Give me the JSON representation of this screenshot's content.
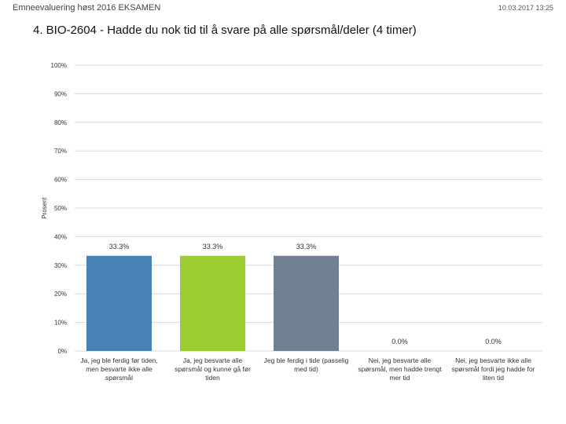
{
  "header": {
    "left_text": "Emneevaluering høst 2016 EKSAMEN",
    "right_text": "10.03.2017 13:25"
  },
  "chart_data": {
    "type": "bar",
    "title": "4. BIO-2604 - Hadde du nok tid til å svare på alle spørsmål/deler (4 timer)",
    "ylabel": "Prosent",
    "xlabel": "",
    "ylim": [
      0,
      100
    ],
    "yticks": [
      "0%",
      "10%",
      "20%",
      "30%",
      "40%",
      "50%",
      "60%",
      "70%",
      "80%",
      "90%",
      "100%"
    ],
    "grid": true,
    "legend": "none",
    "categories": [
      [
        "Ja, jeg ble ferdig før tiden,",
        "men besvarte ikke alle",
        "spørsmål"
      ],
      [
        "Ja, jeg besvarte alle",
        "spørsmål og kunne gå før",
        "tiden"
      ],
      [
        "Jeg ble ferdig i tide (passelig",
        "med tid)"
      ],
      [
        "Nei, jeg besvarte alle",
        "spørsmål, men hadde trengt",
        "mer tid"
      ],
      [
        "Nei, jeg besvarte ikke alle",
        "spørsmål fordi jeg hadde for",
        "liten tid"
      ]
    ],
    "values": [
      33.3,
      33.3,
      33.3,
      0.0,
      0.0
    ],
    "value_labels": [
      "33.3%",
      "33.3%",
      "33.3%",
      "0.0%",
      "0.0%"
    ],
    "colors": [
      "#4682B4",
      "#9ACD32",
      "#708090",
      "#C0504D",
      "#8064A2"
    ]
  }
}
